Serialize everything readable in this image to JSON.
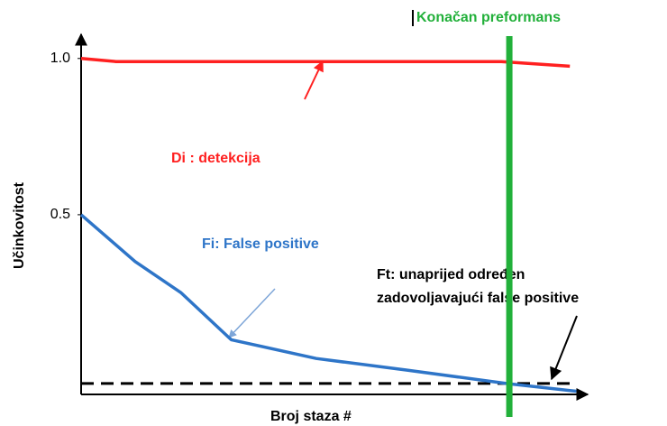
{
  "chart_data": {
    "type": "line",
    "xlabel": "Broj staza #",
    "ylabel": "Učinkovitost",
    "xlim": [
      0,
      10
    ],
    "ylim": [
      -0.075,
      1.06
    ],
    "yticks": [
      {
        "value": 0.5,
        "label": "0.5"
      },
      {
        "value": 1,
        "label": "1.0"
      }
    ],
    "series": [
      {
        "name": "Di : detekcija",
        "color": "#ff2020",
        "x": [
          0,
          0.7,
          2,
          4,
          6,
          8.4,
          9.77
        ],
        "values": [
          1.0,
          0.99,
          0.99,
          0.99,
          0.99,
          0.99,
          0.975
        ]
      },
      {
        "name": "Fi: False positive",
        "color": "#2e75c8",
        "x": [
          0,
          1.08,
          2,
          3,
          4.7,
          6.5,
          8.5,
          9.9
        ],
        "values": [
          0.5,
          0.35,
          0.25,
          0.1,
          0.04,
          0.003,
          -0.04,
          -0.065
        ]
      }
    ],
    "threshold": {
      "value": -0.04,
      "label_lines": [
        "Ft: unaprijed određen",
        "zadovoljavajući false positive"
      ]
    },
    "final": {
      "x": 8.56,
      "label": "Konačan preformans",
      "color": "#22b03a"
    }
  }
}
